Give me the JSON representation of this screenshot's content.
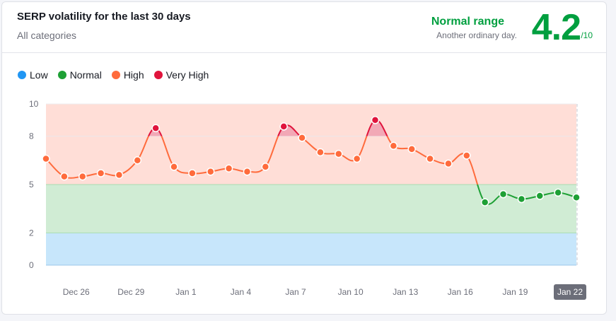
{
  "header": {
    "title": "SERP volatility for the last 30 days",
    "subtitle": "All categories",
    "range_title": "Normal range",
    "range_desc": "Another ordinary day.",
    "score": "4.2",
    "score_denominator": "/10"
  },
  "legend": [
    {
      "label": "Low",
      "color": "#2196f3"
    },
    {
      "label": "Normal",
      "color": "#1ea035"
    },
    {
      "label": "High",
      "color": "#ff6b3c"
    },
    {
      "label": "Very High",
      "color": "#e0143c"
    }
  ],
  "chart_data": {
    "type": "line",
    "title": "SERP volatility for the last 30 days",
    "y_ticks": [
      0,
      2,
      5,
      8,
      10
    ],
    "ylim": [
      0,
      10
    ],
    "x_labels": [
      "Dec 26",
      "Dec 29",
      "Jan 1",
      "Jan 4",
      "Jan 7",
      "Jan 10",
      "Jan 13",
      "Jan 16",
      "Jan 19",
      "Jan 22"
    ],
    "x_label_indices": [
      2,
      5,
      8,
      11,
      14,
      17,
      20,
      23,
      26,
      29
    ],
    "highlighted_label": "Jan 22",
    "bands": [
      {
        "name": "Low",
        "from": 0,
        "to": 2,
        "color": "#c7e6fb"
      },
      {
        "name": "Normal",
        "from": 2,
        "to": 5,
        "color": "#d0ecd4"
      },
      {
        "name": "High",
        "from": 5,
        "to": 10,
        "color": "#ffded7"
      }
    ],
    "values": [
      6.6,
      5.5,
      5.5,
      5.7,
      5.6,
      6.5,
      8.5,
      6.1,
      5.7,
      5.8,
      6.0,
      5.8,
      6.1,
      8.6,
      7.9,
      7.0,
      6.9,
      6.6,
      9.0,
      7.4,
      7.2,
      6.6,
      6.3,
      6.8,
      3.9,
      4.4,
      4.1,
      4.3,
      4.5,
      4.2
    ],
    "thresholds": {
      "normal_below": 5,
      "very_high_above": 8
    },
    "colors": {
      "low": "#2196f3",
      "normal": "#1ea035",
      "high": "#ff6b3c",
      "very_high": "#e0143c",
      "very_high_fill": "#f2a8b6"
    }
  }
}
